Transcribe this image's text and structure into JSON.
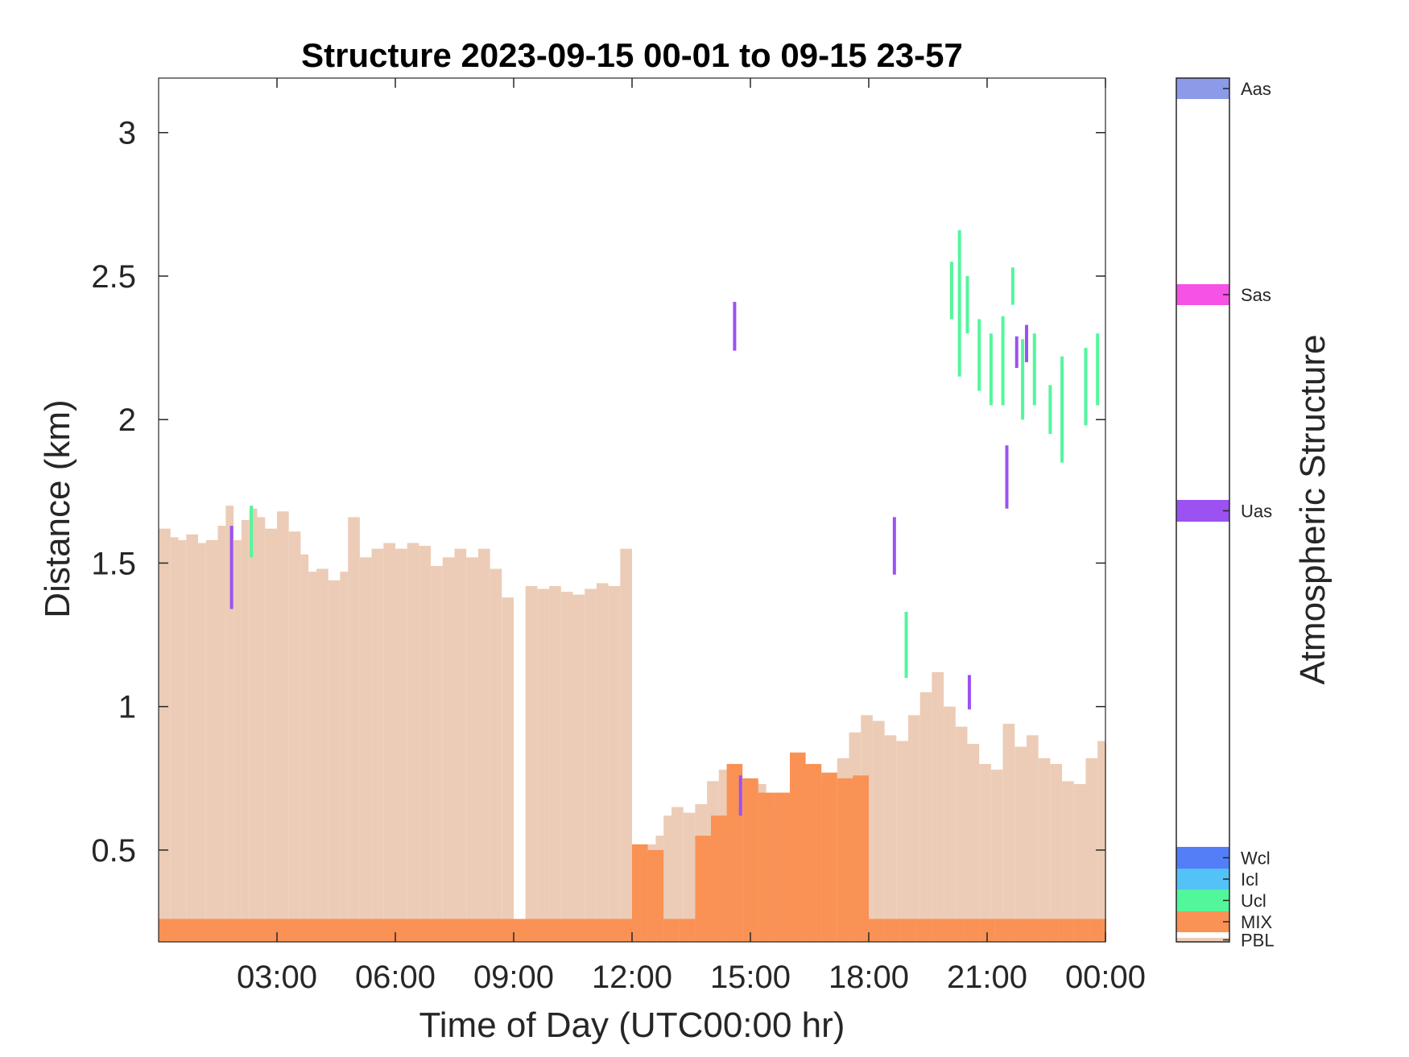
{
  "chart_data": {
    "type": "area",
    "title": "Structure 2023-09-15 00-01 to 09-15 23-57",
    "xlabel": "Time of Day (UTC00:00 hr)",
    "ylabel": "Distance (km)",
    "colorbar_label": "Atmospheric Structure",
    "xlim": [
      0,
      24
    ],
    "ylim": [
      0.18,
      3.19
    ],
    "x_ticks": [
      3,
      6,
      9,
      12,
      15,
      18,
      21,
      24
    ],
    "x_tick_labels": [
      "03:00",
      "06:00",
      "09:00",
      "12:00",
      "15:00",
      "18:00",
      "21:00",
      "00:00"
    ],
    "y_ticks": [
      0.5,
      1,
      1.5,
      2,
      2.5,
      3
    ],
    "y_tick_labels": [
      "0.5",
      "1",
      "1.5",
      "2",
      "2.5",
      "3"
    ],
    "categories": [
      {
        "code": "PBL",
        "color": "#ecccb6"
      },
      {
        "code": "MIX",
        "color": "#f99254"
      },
      {
        "code": "Ucl",
        "color": "#52f79c"
      },
      {
        "code": "Icl",
        "color": "#52c2f7"
      },
      {
        "code": "Wcl",
        "color": "#527ef7"
      },
      {
        "code": "Uas",
        "color": "#9b52f0"
      },
      {
        "code": "Sas",
        "color": "#f652e6"
      },
      {
        "code": "Aas",
        "color": "#8b9be8"
      }
    ],
    "series": [
      {
        "name": "PBL",
        "color": "#ecccb6",
        "x": [
          0.0,
          0.3,
          0.5,
          0.7,
          1.0,
          1.2,
          1.5,
          1.7,
          1.9,
          2.1,
          2.3,
          2.5,
          2.7,
          3.0,
          3.3,
          3.6,
          3.8,
          4.0,
          4.3,
          4.6,
          4.8,
          5.1,
          5.4,
          5.7,
          6.0,
          6.3,
          6.6,
          6.9,
          7.2,
          7.5,
          7.8,
          8.1,
          8.4,
          8.7,
          9.0,
          9.3,
          9.6,
          9.9,
          10.2,
          10.5,
          10.8,
          11.1,
          11.4,
          11.7,
          12.0,
          12.2,
          12.4,
          12.6,
          12.8,
          13.0,
          13.3,
          13.6,
          13.9,
          14.2,
          14.5,
          14.8,
          15.1,
          15.4,
          15.7,
          16.0,
          16.3,
          16.6,
          16.9,
          17.2,
          17.5,
          17.8,
          18.1,
          18.4,
          18.7,
          19.0,
          19.3,
          19.6,
          19.9,
          20.2,
          20.5,
          20.8,
          21.1,
          21.4,
          21.7,
          22.0,
          22.3,
          22.6,
          22.9,
          23.2,
          23.5,
          23.8,
          24.0
        ],
        "y": [
          1.62,
          1.59,
          1.58,
          1.6,
          1.57,
          1.58,
          1.63,
          1.7,
          1.58,
          1.65,
          1.69,
          1.66,
          1.62,
          1.68,
          1.61,
          1.53,
          1.47,
          1.48,
          1.44,
          1.47,
          1.66,
          1.52,
          1.55,
          1.57,
          1.55,
          1.57,
          1.56,
          1.49,
          1.52,
          1.55,
          1.52,
          1.55,
          1.48,
          1.38,
          0.0,
          1.42,
          1.41,
          1.42,
          1.4,
          1.39,
          1.41,
          1.43,
          1.42,
          1.55,
          0.5,
          0.5,
          0.52,
          0.55,
          0.62,
          0.65,
          0.63,
          0.66,
          0.74,
          0.78,
          0.76,
          0.7,
          0.73,
          0.66,
          0.7,
          0.74,
          0.8,
          0.75,
          0.7,
          0.82,
          0.91,
          0.97,
          0.95,
          0.9,
          0.88,
          0.97,
          1.05,
          1.12,
          1.0,
          0.93,
          0.87,
          0.8,
          0.78,
          0.94,
          0.86,
          0.9,
          0.82,
          0.8,
          0.74,
          0.73,
          0.82,
          0.88,
          0.87
        ]
      },
      {
        "name": "MIX",
        "color": "#f99254",
        "x": [
          0.0,
          0.5,
          1.0,
          1.5,
          2.0,
          2.5,
          3.0,
          3.5,
          4.0,
          4.5,
          5.0,
          5.5,
          6.0,
          6.5,
          7.0,
          7.5,
          8.0,
          8.5,
          9.0,
          9.5,
          10.0,
          10.5,
          11.0,
          11.5,
          12.0,
          12.4,
          12.8,
          13.2,
          13.6,
          14.0,
          14.4,
          14.8,
          15.2,
          15.6,
          16.0,
          16.4,
          16.8,
          17.2,
          17.6,
          18.0,
          18.4,
          18.8,
          19.2,
          19.6,
          20.0,
          20.4,
          20.8,
          21.2,
          21.6,
          22.0,
          22.4,
          22.8,
          23.2,
          23.6,
          24.0
        ],
        "y": [
          0.26,
          0.26,
          0.26,
          0.26,
          0.26,
          0.26,
          0.26,
          0.26,
          0.26,
          0.26,
          0.26,
          0.26,
          0.26,
          0.26,
          0.26,
          0.26,
          0.26,
          0.26,
          0.26,
          0.26,
          0.26,
          0.26,
          0.26,
          0.26,
          0.52,
          0.5,
          0.26,
          0.26,
          0.55,
          0.62,
          0.8,
          0.75,
          0.7,
          0.7,
          0.84,
          0.8,
          0.77,
          0.75,
          0.76,
          0.26,
          0.26,
          0.26,
          0.26,
          0.26,
          0.26,
          0.26,
          0.26,
          0.26,
          0.26,
          0.26,
          0.26,
          0.26,
          0.26,
          0.26,
          0.26
        ]
      },
      {
        "name": "Ucl",
        "color": "#52f79c",
        "segments": [
          {
            "x": 2.35,
            "y0": 1.52,
            "y1": 1.7
          },
          {
            "x": 18.95,
            "y0": 1.1,
            "y1": 1.33
          },
          {
            "x": 20.1,
            "y0": 2.35,
            "y1": 2.55
          },
          {
            "x": 20.3,
            "y0": 2.15,
            "y1": 2.66
          },
          {
            "x": 20.5,
            "y0": 2.3,
            "y1": 2.5
          },
          {
            "x": 20.8,
            "y0": 2.1,
            "y1": 2.35
          },
          {
            "x": 21.1,
            "y0": 2.05,
            "y1": 2.3
          },
          {
            "x": 21.4,
            "y0": 2.05,
            "y1": 2.36
          },
          {
            "x": 21.65,
            "y0": 2.4,
            "y1": 2.53
          },
          {
            "x": 21.9,
            "y0": 2.0,
            "y1": 2.28
          },
          {
            "x": 22.2,
            "y0": 2.05,
            "y1": 2.3
          },
          {
            "x": 22.6,
            "y0": 1.95,
            "y1": 2.12
          },
          {
            "x": 22.9,
            "y0": 1.85,
            "y1": 2.22
          },
          {
            "x": 23.5,
            "y0": 1.98,
            "y1": 2.25
          },
          {
            "x": 23.8,
            "y0": 2.05,
            "y1": 2.3
          }
        ]
      },
      {
        "name": "Uas",
        "color": "#9b52f0",
        "segments": [
          {
            "x": 1.85,
            "y0": 1.34,
            "y1": 1.63
          },
          {
            "x": 14.6,
            "y0": 2.24,
            "y1": 2.41
          },
          {
            "x": 14.75,
            "y0": 0.62,
            "y1": 0.76
          },
          {
            "x": 18.65,
            "y0": 1.46,
            "y1": 1.66
          },
          {
            "x": 20.55,
            "y0": 0.99,
            "y1": 1.11
          },
          {
            "x": 21.5,
            "y0": 1.69,
            "y1": 1.91
          },
          {
            "x": 21.75,
            "y0": 2.18,
            "y1": 2.29
          },
          {
            "x": 22.0,
            "y0": 2.2,
            "y1": 2.33
          }
        ]
      }
    ]
  }
}
